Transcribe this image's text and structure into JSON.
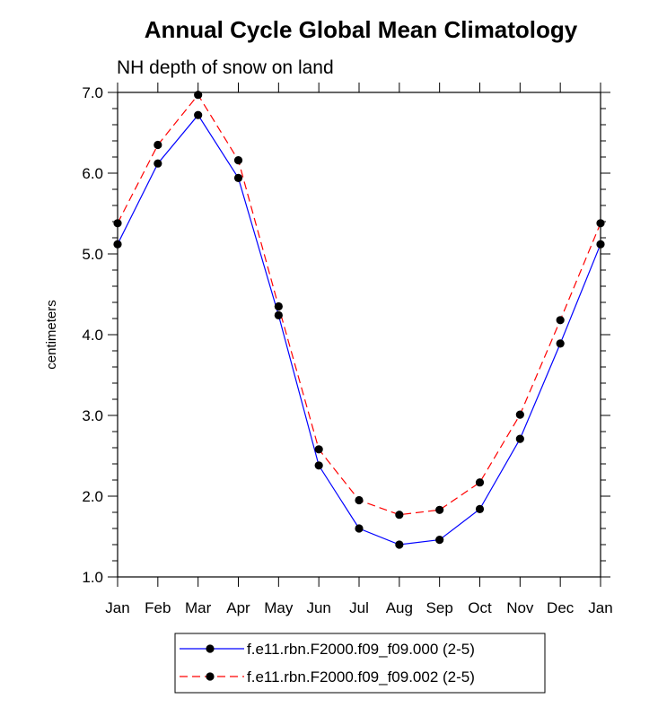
{
  "chart_data": {
    "type": "line",
    "title": "Annual Cycle Global Mean Climatology",
    "subtitle": "NH depth of snow on land",
    "xlabel": "",
    "ylabel": "centimeters",
    "categories": [
      "Jan",
      "Feb",
      "Mar",
      "Apr",
      "May",
      "Jun",
      "Jul",
      "Aug",
      "Sep",
      "Oct",
      "Nov",
      "Dec",
      "Jan"
    ],
    "ylim": [
      1.0,
      7.0
    ],
    "yticks": [
      1.0,
      2.0,
      3.0,
      4.0,
      5.0,
      6.0,
      7.0
    ],
    "ytick_labels": [
      "1.0",
      "2.0",
      "3.0",
      "4.0",
      "5.0",
      "6.0",
      "7.0"
    ],
    "grid": false,
    "legend_position": "bottom-center",
    "series": [
      {
        "name": "f.e11.rbn.F2000.f09_f09.000 (2-5)",
        "color": "#0000ff",
        "dash": "solid",
        "marker": "circle",
        "values": [
          5.12,
          6.12,
          6.72,
          5.94,
          4.24,
          2.38,
          1.6,
          1.4,
          1.46,
          1.84,
          2.71,
          3.89,
          5.12
        ]
      },
      {
        "name": "f.e11.rbn.F2000.f09_f09.002 (2-5)",
        "color": "#ff0000",
        "dash": "dashed",
        "marker": "circle",
        "values": [
          5.38,
          6.35,
          6.97,
          6.16,
          4.35,
          2.58,
          1.95,
          1.77,
          1.83,
          2.17,
          3.01,
          4.18,
          5.38
        ]
      }
    ]
  }
}
